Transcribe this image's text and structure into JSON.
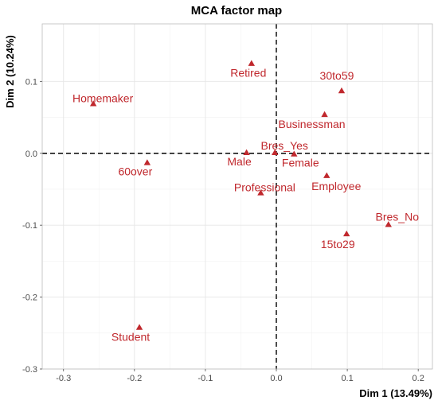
{
  "chart_data": {
    "type": "scatter",
    "title": "MCA factor map",
    "xlabel": "Dim 1 (13.49%)",
    "ylabel": "Dim 2 (10.24%)",
    "xlim": [
      -0.33,
      0.22
    ],
    "ylim": [
      -0.3,
      0.18
    ],
    "xticks": [
      -0.3,
      -0.2,
      -0.1,
      0.0,
      0.1,
      0.2
    ],
    "yticks": [
      -0.3,
      -0.2,
      -0.1,
      0.0,
      0.1
    ],
    "xtick_labels": [
      "-0.3",
      "-0.2",
      "-0.1",
      "0.0",
      "0.1",
      "0.2"
    ],
    "ytick_labels": [
      "-0.3",
      "-0.2",
      "-0.1",
      "0.0",
      "0.1"
    ],
    "grid": true,
    "reference_lines": {
      "x": 0,
      "y": 0,
      "style": "dashed"
    },
    "marker": "triangle",
    "color": "#c0282d",
    "points": [
      {
        "label": "Retired",
        "x": -0.035,
        "y": 0.125
      },
      {
        "label": "30to59",
        "x": 0.092,
        "y": 0.087
      },
      {
        "label": "Homemaker",
        "x": -0.258,
        "y": 0.069
      },
      {
        "label": "Businessman",
        "x": 0.068,
        "y": 0.054
      },
      {
        "label": "Bres_Yes",
        "x": -0.002,
        "y": 0.001
      },
      {
        "label": "Male",
        "x": -0.042,
        "y": 0.001
      },
      {
        "label": "Female",
        "x": 0.025,
        "y": -0.001
      },
      {
        "label": "60over",
        "x": -0.182,
        "y": -0.013
      },
      {
        "label": "Employee",
        "x": 0.071,
        "y": -0.031
      },
      {
        "label": "Professional",
        "x": -0.022,
        "y": -0.055
      },
      {
        "label": "Bres_No",
        "x": 0.158,
        "y": -0.099
      },
      {
        "label": "15to29",
        "x": 0.099,
        "y": -0.112
      },
      {
        "label": "Student",
        "x": -0.193,
        "y": -0.242
      }
    ]
  }
}
